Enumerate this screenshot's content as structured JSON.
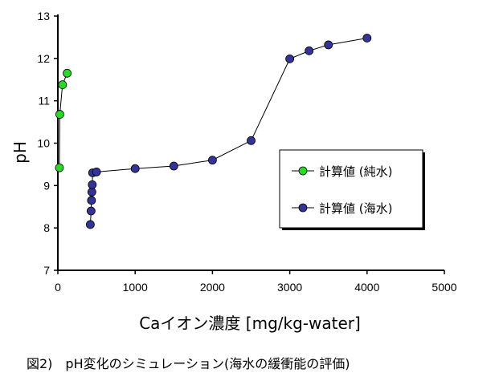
{
  "chart_data": {
    "type": "scatter",
    "xlabel": "Caイオン濃度 [mg/kg-water]",
    "ylabel": "pH",
    "xlim": [
      0,
      5000
    ],
    "ylim": [
      7,
      13
    ],
    "x_ticks": [
      0,
      1000,
      2000,
      3000,
      4000,
      5000
    ],
    "y_ticks": [
      7,
      8,
      9,
      10,
      11,
      12,
      13
    ],
    "grid": false,
    "legend_position": "middle-right",
    "series": [
      {
        "name": "計算値 (純水)",
        "color": "#22dd22",
        "marker": "circle",
        "line": true,
        "points": [
          {
            "x": 20,
            "y": 9.42
          },
          {
            "x": 25,
            "y": 10.68
          },
          {
            "x": 60,
            "y": 11.38
          },
          {
            "x": 120,
            "y": 11.65
          }
        ]
      },
      {
        "name": "計算値 (海水)",
        "color": "#333399",
        "marker": "circle",
        "line": true,
        "points": [
          {
            "x": 420,
            "y": 8.08
          },
          {
            "x": 430,
            "y": 8.4
          },
          {
            "x": 435,
            "y": 8.65
          },
          {
            "x": 440,
            "y": 8.85
          },
          {
            "x": 445,
            "y": 9.02
          },
          {
            "x": 450,
            "y": 9.3
          },
          {
            "x": 500,
            "y": 9.32
          },
          {
            "x": 1000,
            "y": 9.4
          },
          {
            "x": 1500,
            "y": 9.46
          },
          {
            "x": 2000,
            "y": 9.6
          },
          {
            "x": 2500,
            "y": 10.06
          },
          {
            "x": 3000,
            "y": 11.99
          },
          {
            "x": 3250,
            "y": 12.18
          },
          {
            "x": 3500,
            "y": 12.32
          },
          {
            "x": 4000,
            "y": 12.48
          }
        ]
      }
    ]
  },
  "caption": "図2)　pH変化のシミュレーション(海水の緩衝能の評価)"
}
